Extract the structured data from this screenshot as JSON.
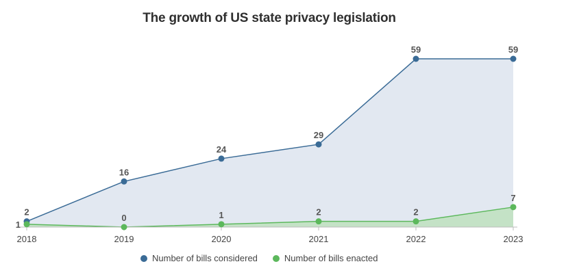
{
  "chart_data": {
    "type": "area",
    "title": "The growth of US state privacy legislation",
    "x": [
      "2018",
      "2019",
      "2020",
      "2021",
      "2022",
      "2023"
    ],
    "series": [
      {
        "name": "Number of bills considered",
        "values": [
          2,
          16,
          24,
          29,
          59,
          59
        ],
        "color": "#3a6b96",
        "fill": "#e2e8f1"
      },
      {
        "name": "Number of bills enacted",
        "values": [
          1,
          0,
          1,
          2,
          2,
          7
        ],
        "color": "#5cb85c",
        "fill": "#c4e2c6"
      }
    ],
    "ylim": [
      0,
      59
    ],
    "xlabel": "",
    "ylabel": "",
    "grid": false,
    "legend": "bottom-center"
  }
}
